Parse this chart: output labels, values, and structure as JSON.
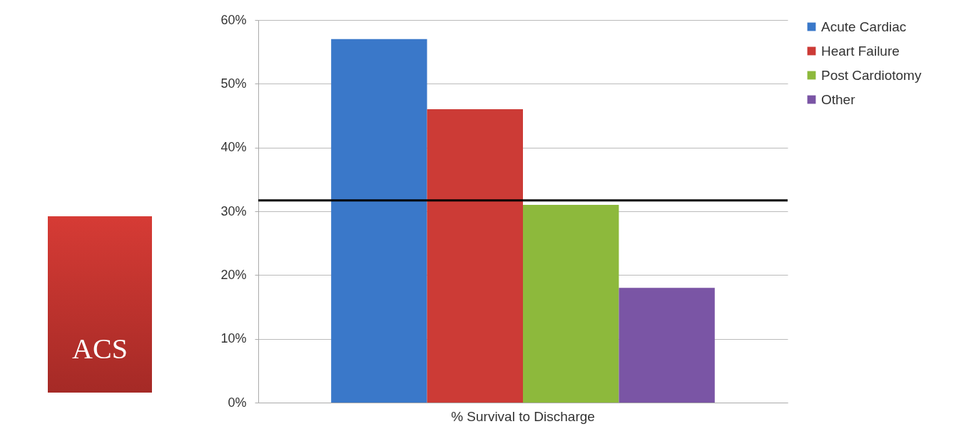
{
  "chart_data": {
    "type": "bar",
    "categories": [
      "% Survival to Discharge"
    ],
    "series": [
      {
        "name": "Acute Cardiac",
        "color": "#3a78c9",
        "values": [
          57
        ]
      },
      {
        "name": "Heart Failure",
        "color": "#cc3b36",
        "values": [
          46
        ]
      },
      {
        "name": "Post Cardiotomy",
        "color": "#8db93c",
        "values": [
          31
        ]
      },
      {
        "name": "Other",
        "color": "#7a55a5",
        "values": [
          18
        ]
      }
    ],
    "ylim": [
      0,
      60
    ],
    "yticks": [
      {
        "value": 0,
        "label": "0%"
      },
      {
        "value": 10,
        "label": "10%"
      },
      {
        "value": 20,
        "label": "20%"
      },
      {
        "value": 30,
        "label": "30%"
      },
      {
        "value": 40,
        "label": "40%"
      },
      {
        "value": 50,
        "label": "50%"
      },
      {
        "value": 60,
        "label": "60%"
      }
    ],
    "ref_lines": [
      {
        "axis": "y",
        "value": 31.7,
        "color": "#000000"
      }
    ],
    "annotations": [
      "ACS"
    ],
    "grid": "y",
    "legend": "right"
  }
}
